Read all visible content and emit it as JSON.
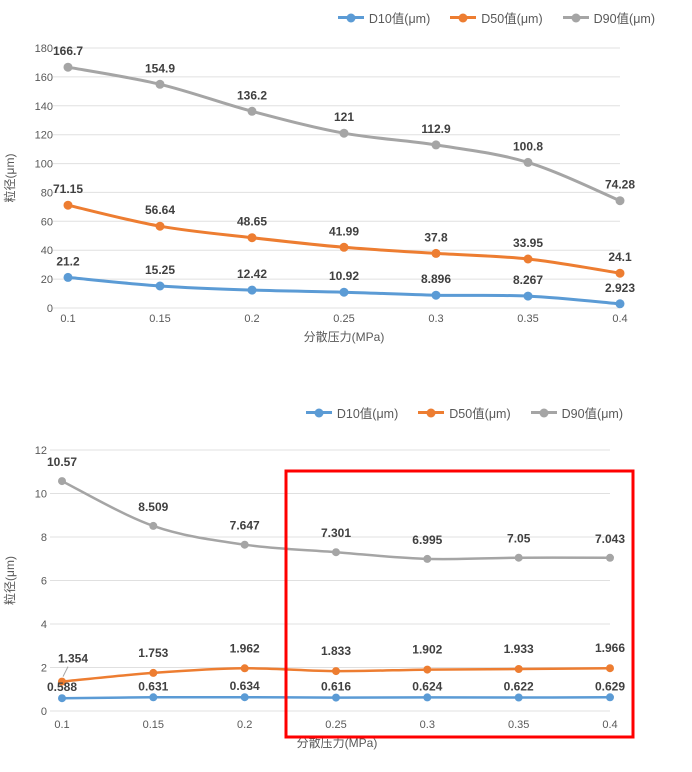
{
  "page": {
    "background": "#FFFFFF"
  },
  "colors": {
    "d10": "#5B9BD5",
    "d50": "#ED7D31",
    "d90": "#A5A5A5",
    "highlight": "#FF0000",
    "grid": "#E0E0E0",
    "tick_text": "#595959",
    "data_label": "#404040"
  },
  "chart_data": [
    {
      "type": "line",
      "title": "",
      "xlabel": "分散压力(MPa)",
      "ylabel": "粒径(μm)",
      "categories": [
        "0.1",
        "0.15",
        "0.2",
        "0.25",
        "0.3",
        "0.35",
        "0.4"
      ],
      "ylim": [
        0,
        180
      ],
      "ytick_step": 20,
      "ytick_labels": [
        "0",
        "20",
        "40",
        "60",
        "80",
        "100",
        "120",
        "140",
        "160",
        "180"
      ],
      "grid": true,
      "legend_position": "top-right",
      "smooth_lines": true,
      "series": [
        {
          "name": "D10值(μm)",
          "color": "#5B9BD5",
          "values": [
            21.2,
            15.25,
            12.42,
            10.92,
            8.896,
            8.267,
            2.923
          ]
        },
        {
          "name": "D50值(μm)",
          "color": "#ED7D31",
          "values": [
            71.15,
            56.64,
            48.65,
            41.99,
            37.8,
            33.95,
            24.1
          ]
        },
        {
          "name": "D90值(μm)",
          "color": "#A5A5A5",
          "values": [
            166.7,
            154.9,
            136.2,
            121,
            112.9,
            100.8,
            74.28
          ]
        }
      ]
    },
    {
      "type": "line",
      "title": "",
      "xlabel": "分散压力(MPa)",
      "ylabel": "粒径(μm)",
      "categories": [
        "0.1",
        "0.15",
        "0.2",
        "0.25",
        "0.3",
        "0.35",
        "0.4"
      ],
      "ylim": [
        0,
        12
      ],
      "ytick_step": 2,
      "ytick_labels": [
        "0",
        "2",
        "4",
        "6",
        "8",
        "10",
        "12"
      ],
      "grid": true,
      "legend_position": "top-right",
      "smooth_lines": true,
      "series": [
        {
          "name": "D10值(μm)",
          "color": "#5B9BD5",
          "values": [
            0.588,
            0.631,
            0.634,
            0.616,
            0.624,
            0.622,
            0.629
          ]
        },
        {
          "name": "D50值(μm)",
          "color": "#ED7D31",
          "values": [
            1.354,
            1.753,
            1.962,
            1.833,
            1.902,
            1.933,
            1.966
          ]
        },
        {
          "name": "D90值(μm)",
          "color": "#A5A5A5",
          "values": [
            10.57,
            8.509,
            7.647,
            7.301,
            6.995,
            7.05,
            7.043
          ]
        }
      ],
      "highlight_box": {
        "category_from": "0.25",
        "category_to": "0.4",
        "color": "#FF0000"
      }
    }
  ]
}
